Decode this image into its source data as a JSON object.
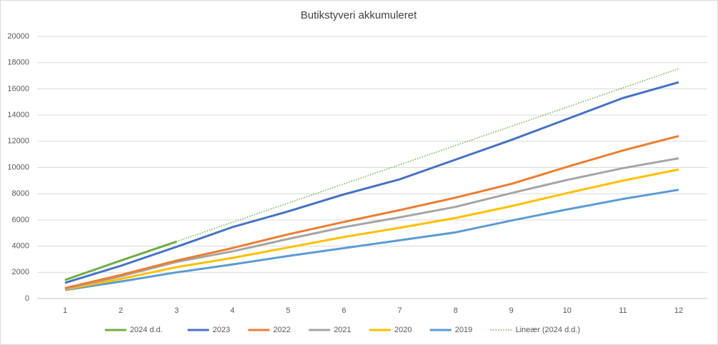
{
  "chart_data": {
    "type": "line",
    "title": "Butikstyveri akkumuleret",
    "x": [
      1,
      2,
      3,
      4,
      5,
      6,
      7,
      8,
      9,
      10,
      11,
      12
    ],
    "xlim": [
      1,
      12
    ],
    "ylim": [
      0,
      20000
    ],
    "yticks": [
      0,
      2000,
      4000,
      6000,
      8000,
      10000,
      12000,
      14000,
      16000,
      18000,
      20000
    ],
    "grid": true,
    "legend": "bottom",
    "series": [
      {
        "name": "2024 d.d.",
        "color": "#70ad47",
        "values": [
          1420,
          2900,
          4350,
          null,
          null,
          null,
          null,
          null,
          null,
          null,
          null,
          null
        ]
      },
      {
        "name": "2023",
        "color": "#4472c4",
        "values": [
          1200,
          2500,
          3950,
          5450,
          6650,
          7950,
          9100,
          10600,
          12100,
          13700,
          15300,
          16500
        ]
      },
      {
        "name": "2022",
        "color": "#ed7d31",
        "values": [
          800,
          1800,
          2900,
          3850,
          4900,
          5850,
          6750,
          7700,
          8750,
          10050,
          11300,
          12400
        ]
      },
      {
        "name": "2021",
        "color": "#a5a5a5",
        "values": [
          750,
          1700,
          2800,
          3600,
          4550,
          5450,
          6200,
          7000,
          8050,
          9050,
          9950,
          10700
        ]
      },
      {
        "name": "2020",
        "color": "#ffc000",
        "values": [
          700,
          1500,
          2400,
          3100,
          3900,
          4700,
          5400,
          6150,
          7050,
          8050,
          9000,
          9850
        ]
      },
      {
        "name": "2019",
        "color": "#5b9bd5",
        "values": [
          650,
          1300,
          2000,
          2600,
          3250,
          3850,
          4450,
          5050,
          5950,
          6800,
          7600,
          8300
        ]
      },
      {
        "name": "Lineær (2024 d.d.)",
        "color": "#70ad47",
        "dash": "dotted",
        "values": [
          1425,
          2890,
          4355,
          5820,
          7285,
          8750,
          10215,
          11680,
          13145,
          14610,
          16075,
          17540
        ]
      }
    ]
  }
}
